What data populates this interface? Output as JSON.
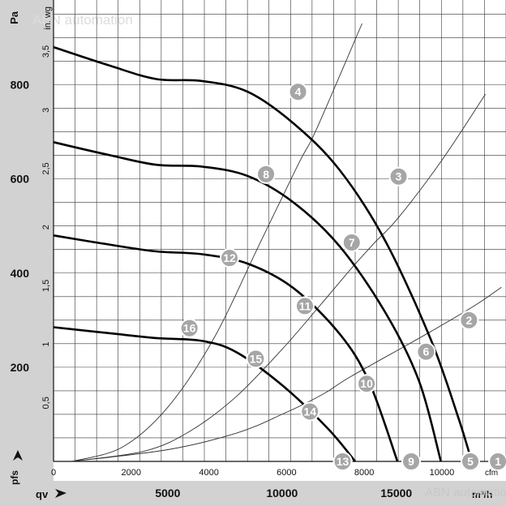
{
  "chart_data": {
    "type": "line",
    "title": "",
    "watermark": "ABN automation",
    "x_bottom": {
      "label": "qv",
      "unit": "m³/h",
      "ticks": [
        5000,
        10000,
        15000
      ],
      "tick_labels": [
        "5000",
        "10000",
        "15000"
      ],
      "range": [
        0,
        19800
      ]
    },
    "x_top": {
      "unit": "cfm",
      "ticks": [
        0,
        2000,
        4000,
        6000,
        8000,
        10000
      ],
      "tick_labels": [
        "0",
        "2000",
        "4000",
        "6000",
        "8000",
        "10000"
      ],
      "range": [
        0,
        11650
      ]
    },
    "y_left": {
      "label": "Pa",
      "axis_symbol": "pfs",
      "ticks": [
        200,
        400,
        600,
        800
      ],
      "tick_labels": [
        "200",
        "400",
        "600",
        "800"
      ],
      "range": [
        0,
        980
      ]
    },
    "y_right": {
      "unit": "in. wg",
      "ticks": [
        0.5,
        1,
        1.5,
        2,
        2.5,
        3,
        3.5
      ],
      "tick_labels": [
        "0,5",
        "1",
        "1,5",
        "2",
        "2,5",
        "3",
        "3,5"
      ],
      "range": [
        0,
        3.94
      ]
    },
    "grid": true,
    "series": [
      {
        "points": [
          [
            0,
            880
          ],
          [
            2500,
            840
          ],
          [
            4500,
            812
          ],
          [
            6500,
            808
          ],
          [
            8500,
            785
          ],
          [
            10500,
            718
          ],
          [
            12500,
            620
          ],
          [
            14500,
            470
          ],
          [
            16500,
            260
          ],
          [
            17700,
            95
          ],
          [
            18300,
            0
          ]
        ]
      },
      {
        "points": [
          [
            0,
            678
          ],
          [
            2500,
            650
          ],
          [
            4500,
            630
          ],
          [
            6500,
            626
          ],
          [
            8500,
            606
          ],
          [
            10500,
            550
          ],
          [
            12500,
            458
          ],
          [
            14500,
            318
          ],
          [
            16000,
            170
          ],
          [
            16950,
            0
          ]
        ]
      },
      {
        "points": [
          [
            0,
            480
          ],
          [
            2500,
            460
          ],
          [
            4500,
            446
          ],
          [
            6500,
            440
          ],
          [
            8500,
            420
          ],
          [
            10500,
            368
          ],
          [
            12500,
            272
          ],
          [
            13800,
            170
          ],
          [
            15050,
            0
          ]
        ]
      },
      {
        "points": [
          [
            0,
            285
          ],
          [
            2500,
            272
          ],
          [
            4500,
            262
          ],
          [
            6500,
            256
          ],
          [
            8000,
            232
          ],
          [
            10000,
            162
          ],
          [
            12000,
            70
          ],
          [
            13200,
            0
          ]
        ]
      }
    ],
    "system_curves": [
      {
        "points": [
          [
            800,
            0
          ],
          [
            3000,
            30
          ],
          [
            5000,
            115
          ],
          [
            7000,
            260
          ],
          [
            9000,
            460
          ],
          [
            10700,
            630
          ],
          [
            11300,
            684
          ],
          [
            12000,
            760
          ],
          [
            13500,
            930
          ]
        ]
      },
      {
        "points": [
          [
            800,
            0
          ],
          [
            4000,
            22
          ],
          [
            6000,
            65
          ],
          [
            8000,
            138
          ],
          [
            10000,
            238
          ],
          [
            11500,
            322
          ],
          [
            13000,
            408
          ],
          [
            14000,
            462
          ],
          [
            15100,
            518
          ],
          [
            17000,
            640
          ],
          [
            18900,
            780
          ]
        ]
      },
      {
        "points": [
          [
            800,
            0
          ],
          [
            5000,
            25
          ],
          [
            8000,
            60
          ],
          [
            10000,
            100
          ],
          [
            11800,
            143
          ],
          [
            13000,
            180
          ],
          [
            16300,
            270
          ],
          [
            18400,
            330
          ],
          [
            19600,
            370
          ]
        ]
      }
    ],
    "operating_points": [
      {
        "label": "1",
        "x": 19450,
        "y": 0
      },
      {
        "label": "2",
        "x": 18180,
        "y": 300
      },
      {
        "label": "3",
        "x": 15100,
        "y": 605
      },
      {
        "label": "4",
        "x": 10700,
        "y": 785
      },
      {
        "label": "5",
        "x": 18240,
        "y": 0
      },
      {
        "label": "6",
        "x": 16300,
        "y": 233
      },
      {
        "label": "7",
        "x": 13050,
        "y": 465
      },
      {
        "label": "8",
        "x": 9300,
        "y": 610
      },
      {
        "label": "9",
        "x": 15650,
        "y": 0
      },
      {
        "label": "10",
        "x": 13700,
        "y": 165
      },
      {
        "label": "11",
        "x": 11000,
        "y": 330
      },
      {
        "label": "12",
        "x": 7700,
        "y": 432
      },
      {
        "label": "13",
        "x": 12650,
        "y": 0
      },
      {
        "label": "14",
        "x": 11220,
        "y": 106
      },
      {
        "label": "15",
        "x": 8850,
        "y": 218
      },
      {
        "label": "16",
        "x": 5950,
        "y": 283
      }
    ]
  }
}
